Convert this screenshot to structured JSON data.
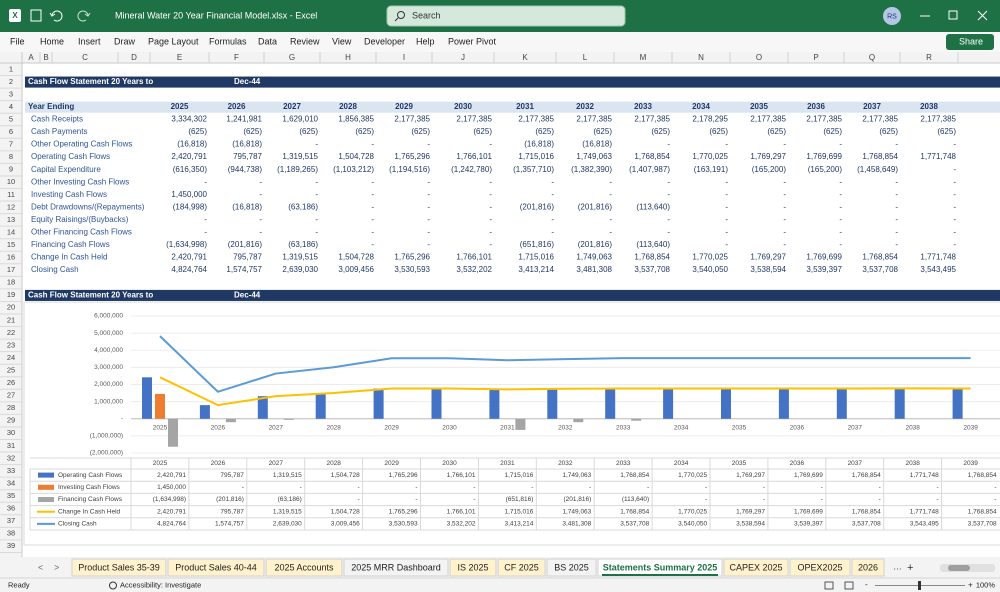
{
  "window": {
    "title": "Mineral Water 20 Year Financial Model.xlsx  -  Excel",
    "search": "Search",
    "user": "RS"
  },
  "menu": [
    "File",
    "Home",
    "Insert",
    "Draw",
    "Page Layout",
    "Formulas",
    "Data",
    "Review",
    "View",
    "Developer",
    "Help",
    "Power Pivot"
  ],
  "share": "Share",
  "columns": [
    "A",
    "B",
    "C",
    "D",
    "E",
    "F",
    "G",
    "H",
    "I",
    "J",
    "K",
    "L",
    "M",
    "N",
    "O",
    "P",
    "Q",
    "R"
  ],
  "row_numbers": [
    1,
    2,
    3,
    4,
    5,
    6,
    7,
    8,
    9,
    10,
    11,
    12,
    13,
    14,
    15,
    16,
    17,
    18,
    19,
    20,
    21,
    22,
    23,
    24,
    25,
    26,
    27,
    28,
    29,
    30,
    31,
    32,
    33,
    34,
    35,
    36,
    37,
    38,
    39
  ],
  "sheet": {
    "banner": {
      "title": "Cash Flow Statement 20 Years to",
      "date": "Dec-44"
    },
    "header": {
      "label": "Year Ending",
      "years": [
        2025,
        2026,
        2027,
        2028,
        2029,
        2030,
        2031,
        2032,
        2033,
        2034,
        2035,
        2036,
        2037,
        2038
      ]
    },
    "rows": [
      {
        "label": "Cash Receipts",
        "cells": [
          "3,334,302",
          "1,241,981",
          "1,629,010",
          "1,856,385",
          "2,177,385",
          "2,177,385",
          "2,177,385",
          "2,177,385",
          "2,177,385",
          "2,178,295",
          "2,177,385",
          "2,177,385",
          "2,177,385",
          "2,177,385"
        ]
      },
      {
        "label": "Cash Payments",
        "cells": [
          "(625)",
          "(625)",
          "(625)",
          "(625)",
          "(625)",
          "(625)",
          "(625)",
          "(625)",
          "(625)",
          "(625)",
          "(625)",
          "(625)",
          "(625)",
          "(625)"
        ]
      },
      {
        "label": "Other Operating Cash Flows",
        "cells": [
          "(16,818)",
          "(16,818)",
          "-",
          "-",
          "-",
          "-",
          "(16,818)",
          "(16,818)",
          "-",
          "-",
          "-",
          "-",
          "-",
          "-"
        ]
      },
      {
        "label": "Operating Cash Flows",
        "cells": [
          "2,420,791",
          "795,787",
          "1,319,515",
          "1,504,728",
          "1,765,296",
          "1,766,101",
          "1,715,016",
          "1,749,063",
          "1,768,854",
          "1,770,025",
          "1,769,297",
          "1,769,699",
          "1,768,854",
          "1,771,748"
        ]
      },
      {
        "label": "Capital Expenditure",
        "cells": [
          "(616,350)",
          "(944,738)",
          "(1,189,265)",
          "(1,103,212)",
          "(1,194,516)",
          "(1,242,780)",
          "(1,357,710)",
          "(1,382,390)",
          "(1,407,987)",
          "(163,191)",
          "(165,200)",
          "(165,200)",
          "(1,458,649)",
          "-"
        ]
      },
      {
        "label": "Other Investing Cash Flows",
        "cells": [
          "-",
          "-",
          "-",
          "-",
          "-",
          "-",
          "-",
          "-",
          "-",
          "-",
          "-",
          "-",
          "-",
          "-"
        ]
      },
      {
        "label": "Investing Cash Flows",
        "cells": [
          "1,450,000",
          "-",
          "-",
          "-",
          "-",
          "-",
          "-",
          "-",
          "-",
          "-",
          "-",
          "-",
          "-",
          "-"
        ]
      },
      {
        "label": "Debt Drawdowns/(Repayments)",
        "cells": [
          "(184,998)",
          "(16,818)",
          "(63,186)",
          "-",
          "-",
          "-",
          "(201,816)",
          "(201,816)",
          "(113,640)",
          "-",
          "-",
          "-",
          "-",
          "-"
        ]
      },
      {
        "label": "Equity Raisings/(Buybacks)",
        "cells": [
          "-",
          "-",
          "-",
          "-",
          "-",
          "-",
          "-",
          "-",
          "-",
          "-",
          "-",
          "-",
          "-",
          "-"
        ]
      },
      {
        "label": "Other Financing Cash Flows",
        "cells": [
          "-",
          "-",
          "-",
          "-",
          "-",
          "-",
          "-",
          "-",
          "-",
          "-",
          "-",
          "-",
          "-",
          "-"
        ]
      },
      {
        "label": "Financing Cash Flows",
        "cells": [
          "(1,634,998)",
          "(201,816)",
          "(63,186)",
          "-",
          "-",
          "-",
          "(651,816)",
          "(201,816)",
          "(113,640)",
          "-",
          "-",
          "-",
          "-",
          "-"
        ]
      },
      {
        "label": "Change In Cash Held",
        "cells": [
          "2,420,791",
          "795,787",
          "1,319,515",
          "1,504,728",
          "1,765,296",
          "1,766,101",
          "1,715,016",
          "1,749,063",
          "1,768,854",
          "1,770,025",
          "1,769,297",
          "1,769,699",
          "1,768,854",
          "1,771,748"
        ]
      },
      {
        "label": "Closing Cash",
        "cells": [
          "4,824,764",
          "1,574,757",
          "2,639,030",
          "3,009,456",
          "3,530,593",
          "3,532,202",
          "3,413,214",
          "3,481,308",
          "3,537,708",
          "3,540,050",
          "3,538,594",
          "3,539,397",
          "3,537,708",
          "3,543,495"
        ]
      }
    ]
  },
  "chart": {
    "type": "combo",
    "categories": [
      "2025",
      "2026",
      "2027",
      "2028",
      "2029",
      "2030",
      "2031",
      "2032",
      "2033",
      "2034",
      "2035",
      "2036",
      "2037",
      "2038",
      "2039"
    ],
    "ylim": [
      -2000000,
      6000000
    ],
    "yticks": [
      {
        "value": -2000000,
        "label": "(2,000,000)"
      },
      {
        "value": -1000000,
        "label": "(1,000,000)"
      },
      {
        "value": 0,
        "label": "-"
      },
      {
        "value": 1000000,
        "label": "1,000,000"
      },
      {
        "value": 2000000,
        "label": "2,000,000"
      },
      {
        "value": 3000000,
        "label": "3,000,000"
      },
      {
        "value": 4000000,
        "label": "4,000,000"
      },
      {
        "value": 5000000,
        "label": "5,000,000"
      },
      {
        "value": 6000000,
        "label": "6,000,000"
      }
    ],
    "grid": true,
    "series": [
      {
        "name": "Operating Cash Flows",
        "type": "bar",
        "color": "#4472c4",
        "values": [
          2420791,
          795787,
          1319515,
          1504728,
          1765296,
          1766101,
          1715016,
          1749063,
          1768854,
          1770025,
          1769297,
          1769699,
          1768854,
          1771748,
          1768854
        ],
        "value_labels": [
          "2,420,791",
          "795,787",
          "1,319,515",
          "1,504,728",
          "1,765,296",
          "1,766,101",
          "1,715,016",
          "1,749,063",
          "1,768,854",
          "1,770,025",
          "1,769,297",
          "1,769,699",
          "1,768,854",
          "1,771,748",
          "1,768,854"
        ]
      },
      {
        "name": "Investing Cash Flows",
        "type": "bar",
        "color": "#ed7d31",
        "values": [
          1450000,
          0,
          0,
          0,
          0,
          0,
          0,
          0,
          0,
          0,
          0,
          0,
          0,
          0,
          0
        ],
        "value_labels": [
          "1,450,000",
          "-",
          "-",
          "-",
          "-",
          "-",
          "-",
          "-",
          "-",
          "-",
          "-",
          "-",
          "-",
          "-",
          "-"
        ]
      },
      {
        "name": "Financing Cash Flows",
        "type": "bar",
        "color": "#a5a5a5",
        "values": [
          -1634998,
          -201816,
          -63186,
          0,
          0,
          0,
          -651816,
          -201816,
          -113640,
          0,
          0,
          0,
          0,
          0,
          0
        ],
        "value_labels": [
          "(1,634,998)",
          "(201,816)",
          "(63,186)",
          "-",
          "-",
          "-",
          "(651,816)",
          "(201,816)",
          "(113,640)",
          "-",
          "-",
          "-",
          "-",
          "-",
          "-"
        ]
      },
      {
        "name": "Change In Cash Held",
        "type": "line",
        "color": "#ffc000",
        "values": [
          2420791,
          795787,
          1319515,
          1504728,
          1765296,
          1766101,
          1715016,
          1749063,
          1768854,
          1770025,
          1769297,
          1769699,
          1768854,
          1771748,
          1768854
        ],
        "value_labels": [
          "2,420,791",
          "795,787",
          "1,319,515",
          "1,504,728",
          "1,765,296",
          "1,766,101",
          "1,715,016",
          "1,749,063",
          "1,768,854",
          "1,770,025",
          "1,769,297",
          "1,769,699",
          "1,768,854",
          "1,771,748",
          "1,768,854"
        ]
      },
      {
        "name": "Closing Cash",
        "type": "line",
        "color": "#5b9bd5",
        "values": [
          4824764,
          1574757,
          2639030,
          3009456,
          3530593,
          3532202,
          3413214,
          3481308,
          3537708,
          3540050,
          3538594,
          3539397,
          3537708,
          3543495,
          3537708
        ],
        "value_labels": [
          "4,824,764",
          "1,574,757",
          "2,639,030",
          "3,009,456",
          "3,530,593",
          "3,532,202",
          "3,413,214",
          "3,481,308",
          "3,537,708",
          "3,540,050",
          "3,538,594",
          "3,539,397",
          "3,537,708",
          "3,543,495",
          "3,537,708"
        ]
      }
    ]
  },
  "tabs": [
    {
      "name": "Product Sales 35-39",
      "color": "#fff2cc"
    },
    {
      "name": "Product Sales 40-44",
      "color": "#fff2cc"
    },
    {
      "name": "2025 Accounts",
      "color": "#fff2cc"
    },
    {
      "name": "2025 MRR Dashboard",
      "color": "#f3f3f3"
    },
    {
      "name": "IS 2025",
      "color": "#fff2cc"
    },
    {
      "name": "CF 2025",
      "color": "#fff2cc"
    },
    {
      "name": "BS 2025",
      "color": "#f3f3f3"
    },
    {
      "name": "Statements Summary 2025",
      "color": "#ffffff"
    },
    {
      "name": "CAPEX 2025",
      "color": "#fff2cc"
    },
    {
      "name": "OPEX2025",
      "color": "#fff2cc"
    },
    {
      "name": "2026",
      "color": "#fff2cc"
    }
  ],
  "active_tab": 7,
  "status": {
    "ready": "Ready",
    "accessibility": "Accessibility: Investigate",
    "zoom": "100%"
  }
}
